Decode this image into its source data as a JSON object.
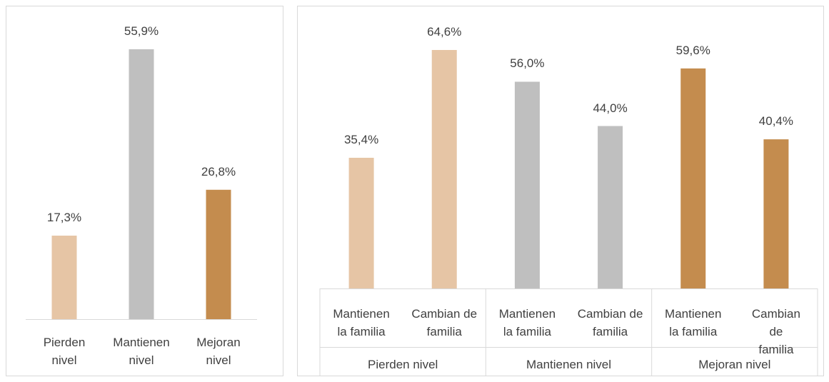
{
  "chart_data": [
    {
      "type": "bar",
      "categories": [
        "Pierden\nnivel",
        "Mantienen\nnivel",
        "Mejoran\nnivel"
      ],
      "values": [
        17.3,
        55.9,
        26.8
      ],
      "value_labels": [
        "17,3%",
        "55,9%",
        "26,8%"
      ],
      "colors": [
        "#e6c5a5",
        "#bfbfbf",
        "#c48c4e"
      ]
    },
    {
      "type": "bar",
      "categories": [
        "Mantienen\nla familia",
        "Cambian de\nfamilia",
        "Mantienen\nla familia",
        "Cambian de\nfamilia",
        "Mantienen\nla familia",
        "Cambian de\nfamilia"
      ],
      "group_labels": [
        "Pierden nivel",
        "Mantienen nivel",
        "Mejoran nivel"
      ],
      "values": [
        35.4,
        64.6,
        56.0,
        44.0,
        59.6,
        40.4
      ],
      "value_labels": [
        "35,4%",
        "64,6%",
        "56,0%",
        "44,0%",
        "59,6%",
        "40,4%"
      ],
      "colors": [
        "#e6c5a5",
        "#e6c5a5",
        "#bfbfbf",
        "#bfbfbf",
        "#c48c4e",
        "#c48c4e"
      ]
    }
  ]
}
